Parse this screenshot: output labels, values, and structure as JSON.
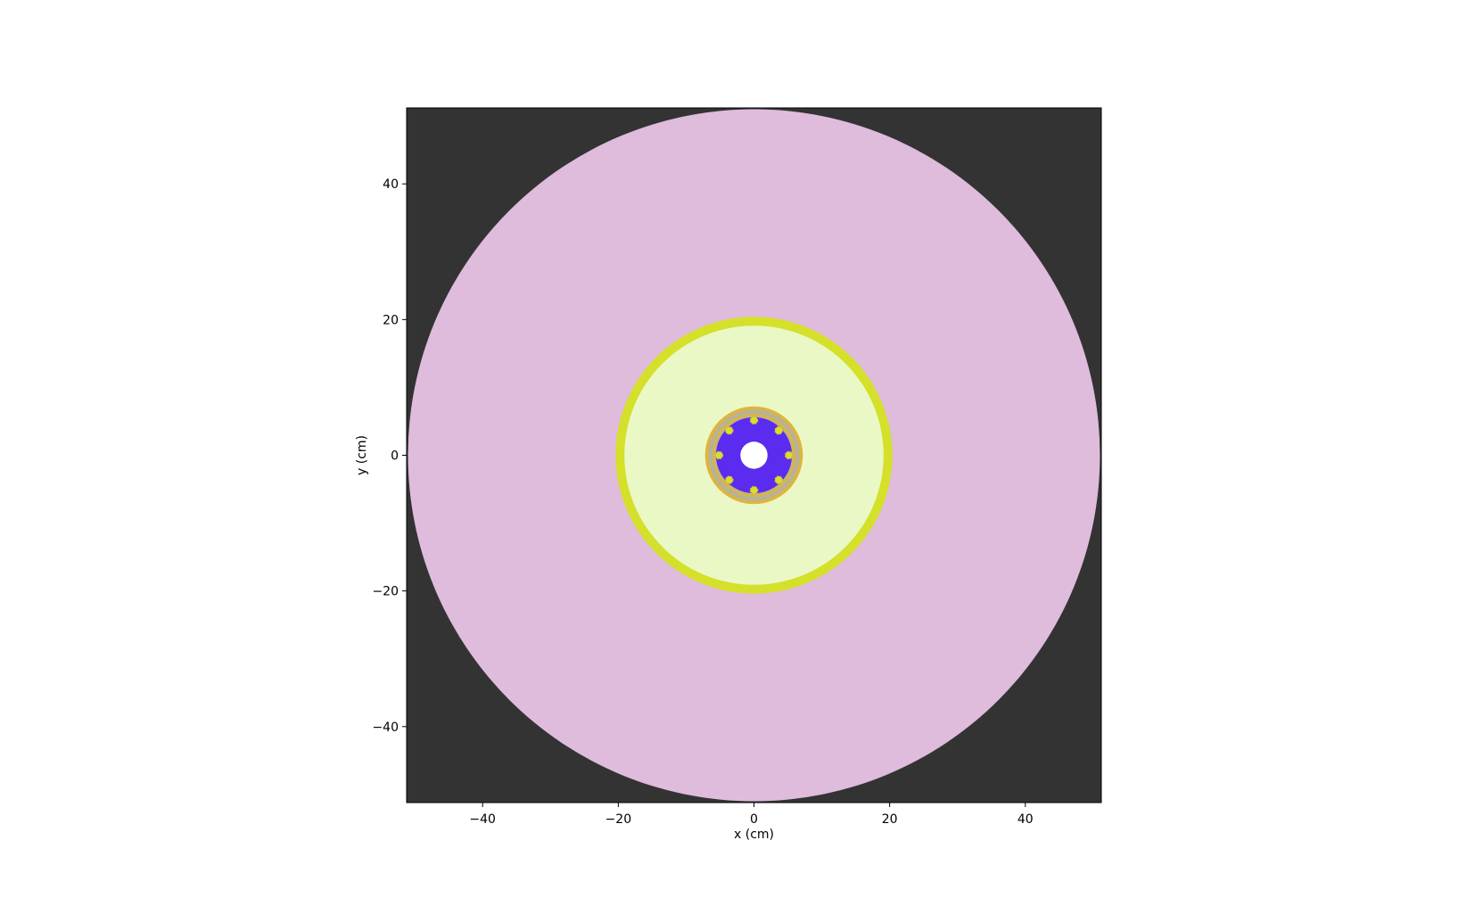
{
  "chart_data": {
    "type": "geometry-slice",
    "xlabel": "x (cm)",
    "ylabel": "y (cm)",
    "xlim": [
      -51.2,
      51.2
    ],
    "ylim": [
      -51.2,
      51.2
    ],
    "xticks": [
      -40,
      -20,
      0,
      20,
      40
    ],
    "yticks": [
      -40,
      -20,
      0,
      20,
      40
    ],
    "xtick_labels": [
      "−40",
      "−20",
      "0",
      "20",
      "40"
    ],
    "ytick_labels": [
      "−40",
      "−20",
      "0",
      "20",
      "40"
    ],
    "grid": false,
    "background_color": "#333333",
    "regions": [
      {
        "name": "outer-reflector",
        "shape": "disk",
        "cx": 0,
        "cy": 0,
        "r": 51.0,
        "color": "#dfbbdc"
      },
      {
        "name": "steel-shell",
        "shape": "disk",
        "cx": 0,
        "cy": 0,
        "r": 20.4,
        "color": "#d4e029"
      },
      {
        "name": "inner-moderator",
        "shape": "disk",
        "cx": 0,
        "cy": 0,
        "r": 19.1,
        "color": "#eaf8c5"
      },
      {
        "name": "core-outer-ring",
        "shape": "disk",
        "cx": 0,
        "cy": 0,
        "r": 7.2,
        "color": "#e0b43c"
      },
      {
        "name": "core-gray-ring",
        "shape": "disk",
        "cx": 0,
        "cy": 0,
        "r": 6.75,
        "color": "#b7b393"
      },
      {
        "name": "core-thin-ring",
        "shape": "disk",
        "cx": 0,
        "cy": 0,
        "r": 6.1,
        "color": "#e0b43c"
      },
      {
        "name": "core-annulus",
        "shape": "disk",
        "cx": 0,
        "cy": 0,
        "r": 5.8,
        "color": "#b7b393"
      },
      {
        "name": "fuel-region",
        "shape": "disk",
        "cx": 0,
        "cy": 0,
        "r": 5.6,
        "color": "#5b2bef"
      },
      {
        "name": "central-void",
        "shape": "disk",
        "cx": 0,
        "cy": 0,
        "r": 2.0,
        "color": "#ffffff"
      }
    ],
    "pins": {
      "ring_radius": 5.15,
      "count": 8,
      "pin_radius": 0.55,
      "color": "#d4e029",
      "outline_color": "#e0b43c"
    }
  }
}
